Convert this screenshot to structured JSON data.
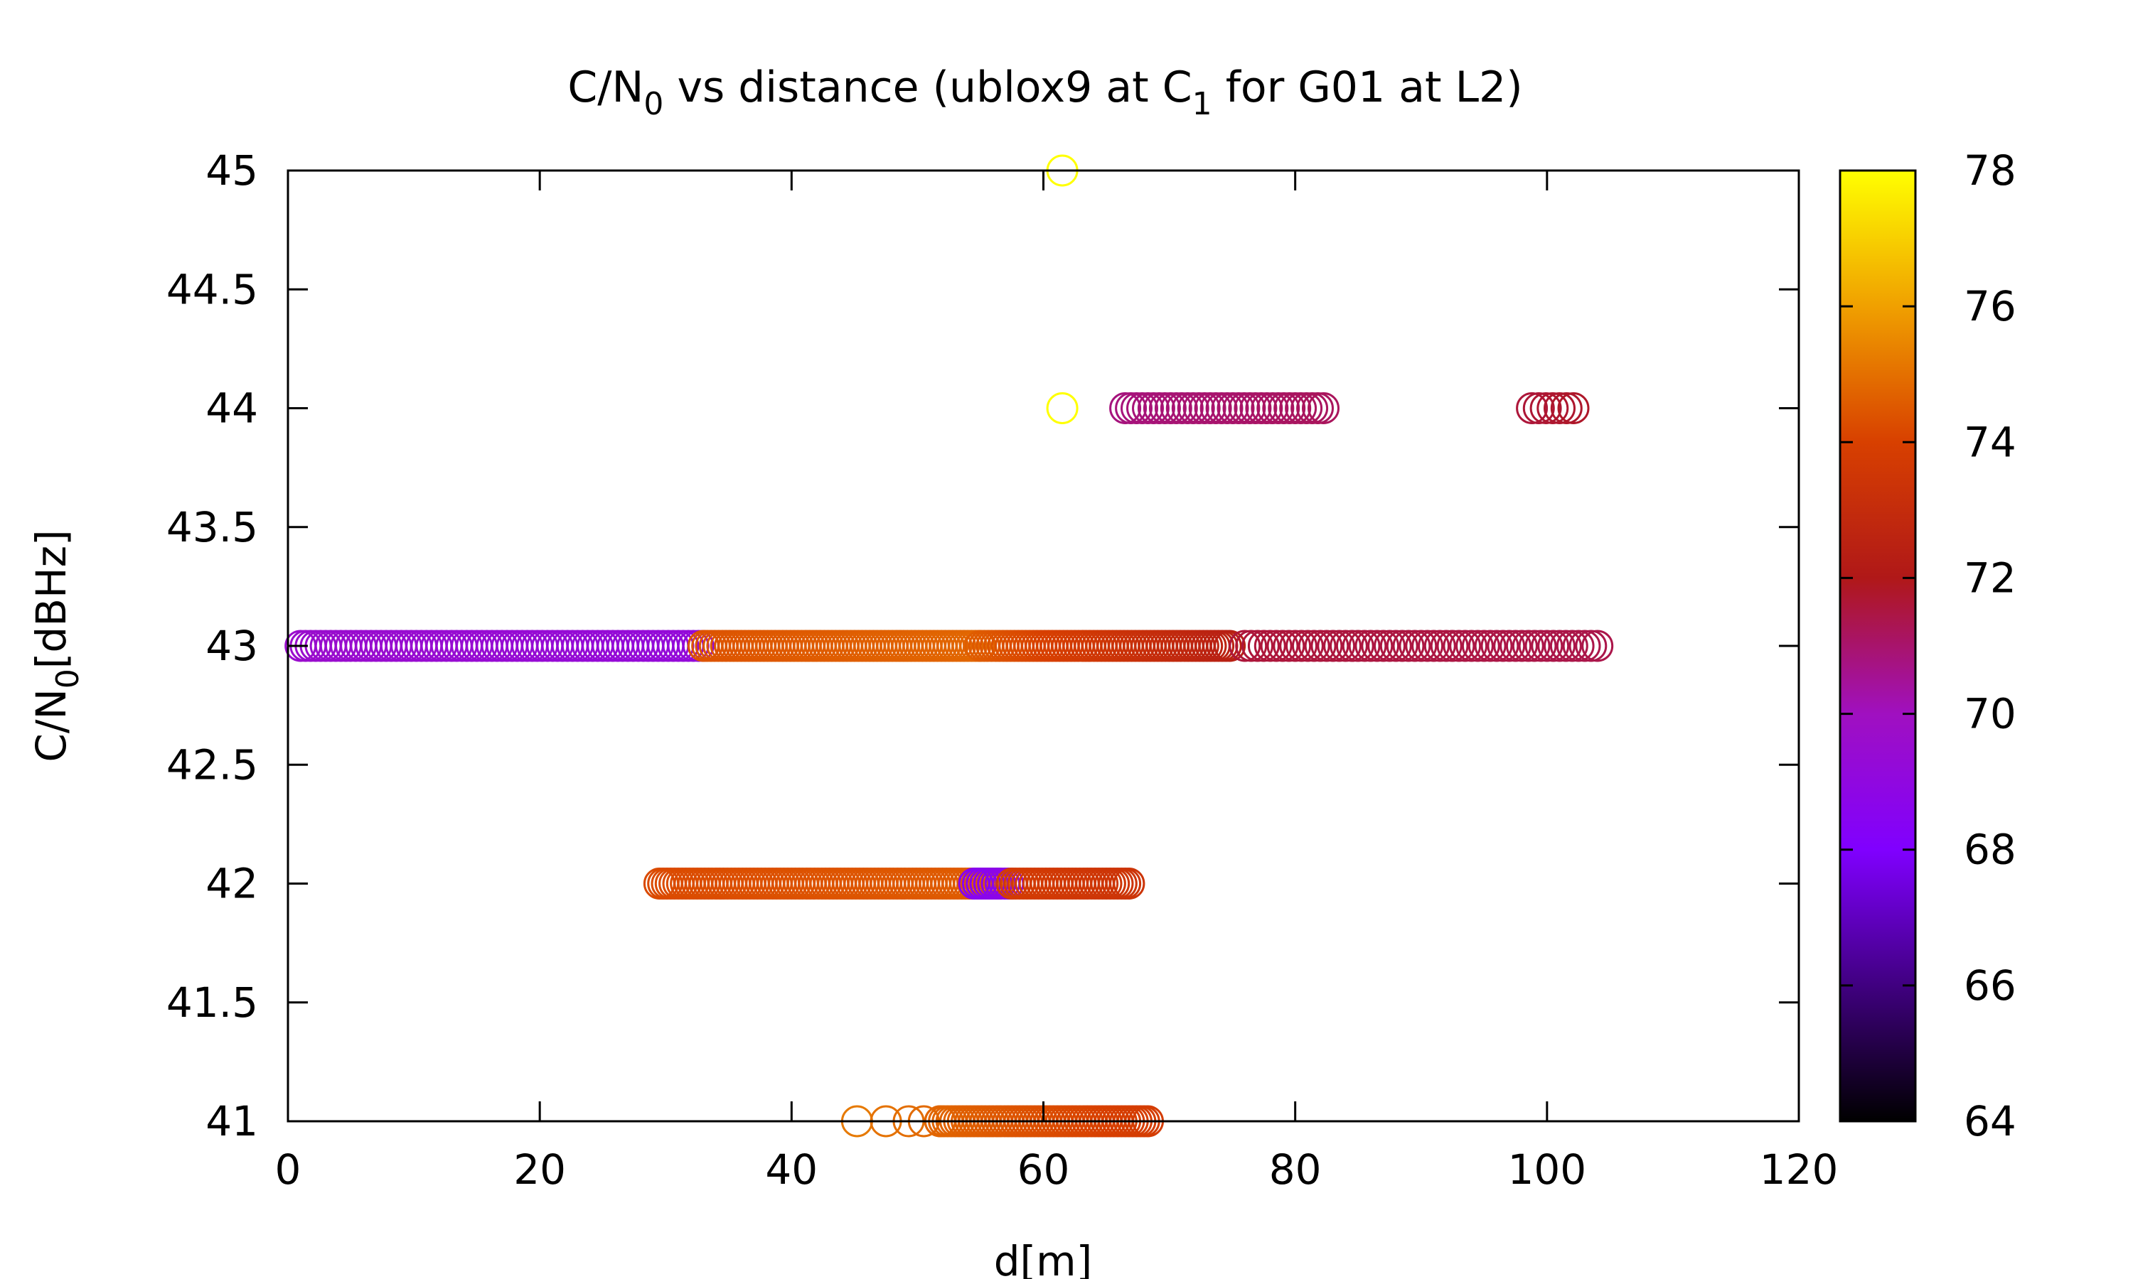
{
  "chart_data": {
    "type": "scatter",
    "title": {
      "main_before": "C/N",
      "main_sub0": "0",
      "main_mid": " vs distance (ublox9 at C",
      "main_sub1": "1",
      "main_after": " for G01 at L2)"
    },
    "xlabel": "d[m]",
    "ylabel": {
      "before": "C/N",
      "sub": "0",
      "after": "[dBHz]"
    },
    "xlim": [
      0,
      120
    ],
    "ylim": [
      41,
      45
    ],
    "x_ticks": [
      "0",
      "20",
      "40",
      "60",
      "80",
      "100",
      "120"
    ],
    "y_ticks": [
      "41",
      "41.5",
      "42",
      "42.5",
      "43",
      "43.5",
      "44",
      "44.5",
      "45"
    ],
    "colorbar": {
      "range": [
        64,
        78
      ],
      "ticks": [
        "64",
        "66",
        "68",
        "70",
        "72",
        "74",
        "76",
        "78"
      ],
      "palette": [
        "#000000",
        "#400080",
        "#8000ff",
        "#a010c0",
        "#b01818",
        "#d84000",
        "#f0a000",
        "#ffff00"
      ]
    },
    "grid": false,
    "legend": "none",
    "marker": "open-circle",
    "segments": [
      {
        "y": 41,
        "x_start": 45,
        "x_end": 68.5,
        "step": 0.3,
        "c_start": 75.2,
        "c_end": 73.8,
        "sparse_x": [
          45.2,
          47.5,
          49.3,
          50.5,
          51.8
        ]
      },
      {
        "y": 42,
        "x_start": 29.5,
        "x_end": 56.5,
        "step": 0.3,
        "c_start": 74.2,
        "c_end": 74.6
      },
      {
        "y": 42,
        "x_start": 54.5,
        "x_end": 57.5,
        "step": 0.3,
        "c_start": 68.4,
        "c_end": 68.8
      },
      {
        "y": 42,
        "x_start": 57.5,
        "x_end": 67,
        "step": 0.3,
        "c_start": 73.8,
        "c_end": 73.4
      },
      {
        "y": 43,
        "x_start": 1,
        "x_end": 33,
        "step": 0.4,
        "c_start": 69.6,
        "c_end": 69.2
      },
      {
        "y": 43,
        "x_start": 33,
        "x_end": 55,
        "step": 0.3,
        "c_start": 74.4,
        "c_end": 74.8
      },
      {
        "y": 43,
        "x_start": 55,
        "x_end": 75,
        "step": 0.3,
        "c_start": 74.6,
        "c_end": 72.4
      },
      {
        "y": 43,
        "x_start": 76,
        "x_end": 104,
        "step": 0.5,
        "c_start": 71.6,
        "c_end": 71.4
      },
      {
        "y": 44,
        "x_start": 66.5,
        "x_end": 82.5,
        "step": 0.45,
        "c_start": 70.8,
        "c_end": 71.2
      },
      {
        "y": 44,
        "x_start": 98.8,
        "x_end": 102.2,
        "step": 0.55,
        "c_start": 71.6,
        "c_end": 71.8
      }
    ],
    "points": [
      {
        "x": 61.5,
        "y": 45,
        "c": 78
      },
      {
        "x": 61.5,
        "y": 44,
        "c": 78
      }
    ]
  }
}
